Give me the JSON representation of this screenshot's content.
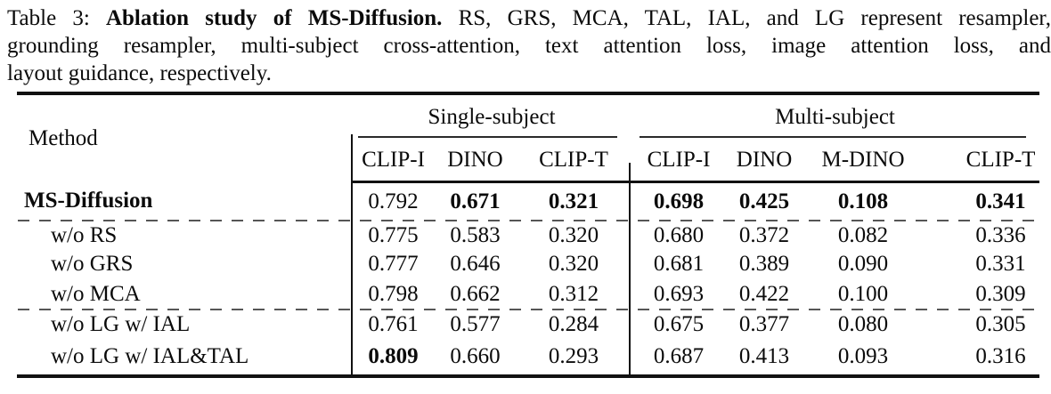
{
  "caption": {
    "line1_prefix": "Table 3: ",
    "line1_bold": "Ablation study of MS-Diffusion.",
    "line1_rest": " RS, GRS, MCA, TAL, IAL, and LG represent resampler,",
    "line2": "grounding resampler, multi-subject cross-attention, text attention loss, image attention loss, and",
    "line3": "layout guidance, respectively."
  },
  "table": {
    "method_header": "Method",
    "groups": [
      {
        "label": "Single-subject",
        "span": 3
      },
      {
        "label": "Multi-subject",
        "span": 4
      }
    ],
    "columns": [
      "CLIP-I",
      "DINO",
      "CLIP-T",
      "CLIP-I",
      "DINO",
      "M-DINO",
      "CLIP-T"
    ],
    "rows": [
      {
        "method": "MS-Diffusion",
        "method_bold": true,
        "values": [
          "0.792",
          "0.671",
          "0.321",
          "0.698",
          "0.425",
          "0.108",
          "0.341"
        ],
        "bold": [
          false,
          true,
          true,
          true,
          true,
          true,
          true
        ]
      },
      {
        "method": "w/o RS",
        "method_bold": false,
        "values": [
          "0.775",
          "0.583",
          "0.320",
          "0.680",
          "0.372",
          "0.082",
          "0.336"
        ],
        "bold": [
          false,
          false,
          false,
          false,
          false,
          false,
          false
        ]
      },
      {
        "method": "w/o GRS",
        "method_bold": false,
        "values": [
          "0.777",
          "0.646",
          "0.320",
          "0.681",
          "0.389",
          "0.090",
          "0.331"
        ],
        "bold": [
          false,
          false,
          false,
          false,
          false,
          false,
          false
        ]
      },
      {
        "method": "w/o MCA",
        "method_bold": false,
        "values": [
          "0.798",
          "0.662",
          "0.312",
          "0.693",
          "0.422",
          "0.100",
          "0.309"
        ],
        "bold": [
          false,
          false,
          false,
          false,
          false,
          false,
          false
        ]
      },
      {
        "method": "w/o LG w/ IAL",
        "method_bold": false,
        "values": [
          "0.761",
          "0.577",
          "0.284",
          "0.675",
          "0.377",
          "0.080",
          "0.305"
        ],
        "bold": [
          false,
          false,
          false,
          false,
          false,
          false,
          false
        ]
      },
      {
        "method": "w/o LG w/ IAL&TAL",
        "method_bold": false,
        "values": [
          "0.809",
          "0.660",
          "0.293",
          "0.687",
          "0.413",
          "0.093",
          "0.316"
        ],
        "bold": [
          true,
          false,
          false,
          false,
          false,
          false,
          false
        ]
      }
    ]
  },
  "colors": {
    "rule": "#111111",
    "dashed_rule": "#565656",
    "text": "#0b0b0b",
    "background": "#ffffff"
  }
}
